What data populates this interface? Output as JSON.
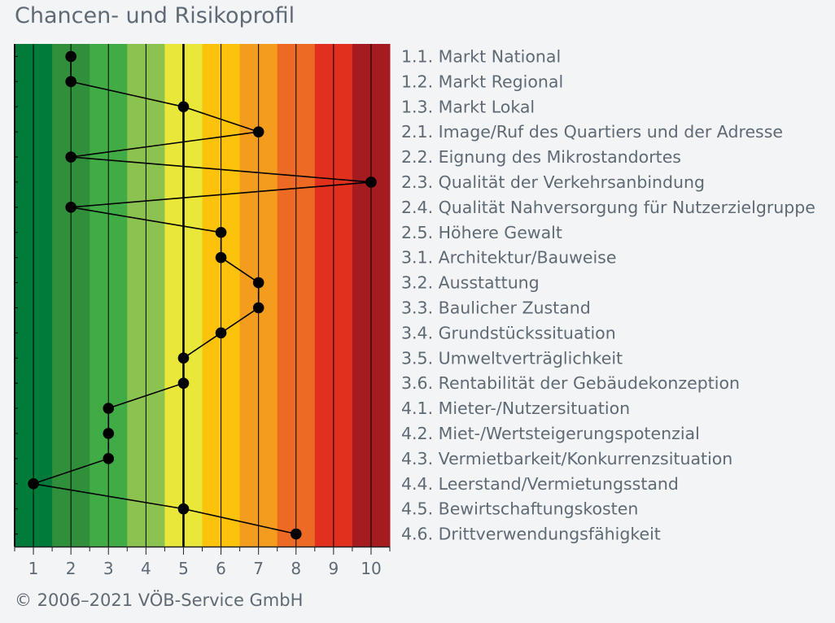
{
  "header": {
    "title": "Chancen- und Risikoprofil"
  },
  "footer": {
    "copyright": "© 2006–2021 VÖB-Service GmbH"
  },
  "chart_data": {
    "type": "line",
    "title": "Chancen- und Risikoprofil",
    "xlim": [
      0.5,
      10.5
    ],
    "x_ticks": [
      "1",
      "2",
      "3",
      "4",
      "5",
      "6",
      "7",
      "8",
      "9",
      "10"
    ],
    "band_colors": [
      "#007b3a",
      "#2f8f3a",
      "#41ac45",
      "#8cc24f",
      "#e8e73a",
      "#fcc20c",
      "#f39c1e",
      "#ec6a24",
      "#e2301f",
      "#a41c1f"
    ],
    "categories": [
      "1.1. Markt National",
      "1.2. Markt Regional",
      "1.3. Markt Lokal",
      "2.1. Image/Ruf des Quartiers und der Adresse",
      "2.2. Eignung des Mikrostandortes",
      "2.3. Qualität der Verkehrsanbindung",
      "2.4. Qualität Nahversorgung für Nutzerzielgruppe",
      "2.5. Höhere Gewalt",
      "3.1. Architektur/Bauweise",
      "3.2. Ausstattung",
      "3.3. Baulicher Zustand",
      "3.4. Grundstückssituation",
      "3.5. Umweltverträglichkeit",
      "3.6. Rentabilität der Gebäudekonzeption",
      "4.1. Mieter-/Nutzersituation",
      "4.2. Miet-/Wertsteigerungspotenzial",
      "4.3. Vermietbarkeit/Konkurrenzsituation",
      "4.4. Leerstand/Vermietungsstand",
      "4.5. Bewirtschaftungskosten",
      "4.6. Drittverwendungsfähigkeit"
    ],
    "values": [
      2,
      2,
      5,
      7,
      2,
      10,
      2,
      6,
      6,
      7,
      7,
      6,
      5,
      5,
      3,
      3,
      3,
      1,
      5,
      8
    ]
  }
}
